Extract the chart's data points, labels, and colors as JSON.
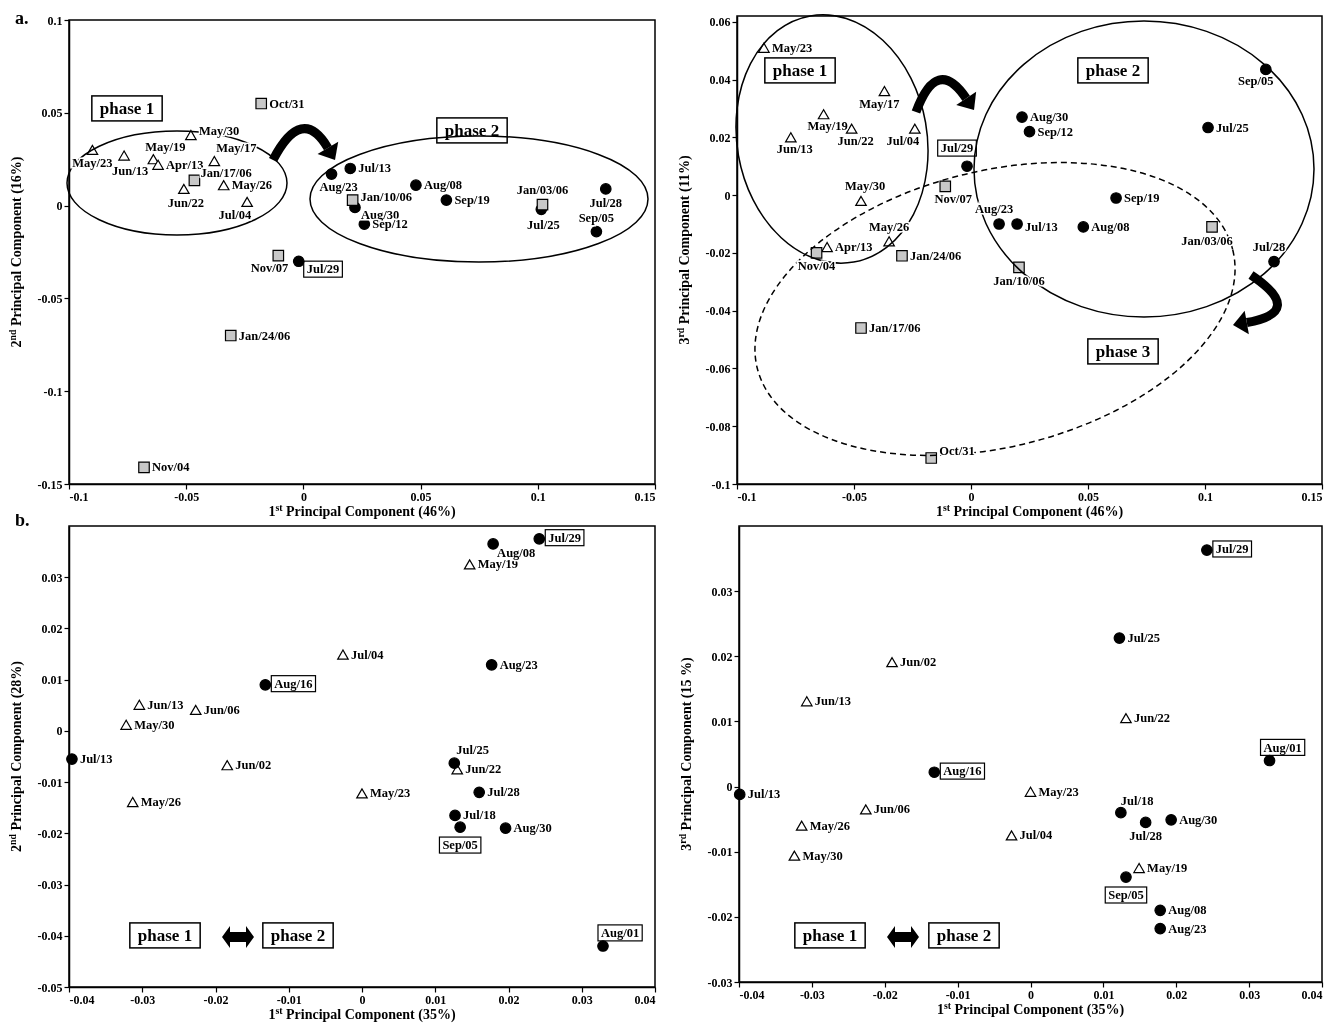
{
  "chart_data": [
    {
      "type": "scatter",
      "xlabel": "1$^{st}$ Principal Component (46%)",
      "ylabel": "2$^{nd}$ Principal Component (16%)",
      "xlim": [
        -0.1,
        0.15
      ],
      "ylim": [
        -0.15,
        0.1
      ],
      "xticks": [
        -0.1,
        -0.05,
        0,
        0.05,
        0.1,
        0.15
      ],
      "yticks": [
        -0.15,
        -0.1,
        -0.05,
        0,
        0.05,
        0.1
      ],
      "annotations": [
        "a.",
        "phase 1",
        "phase 2"
      ],
      "series": [
        {
          "color": "#ffffff",
          "marker": "triangle",
          "x": [
            -0.09,
            -0.0765,
            -0.064,
            -0.062,
            -0.048,
            -0.038,
            -0.051,
            -0.034,
            -0.024
          ],
          "values": [
            0.03,
            0.027,
            0.025,
            0.022,
            0.038,
            0.024,
            0.009,
            0.011,
            0.002
          ],
          "value_labels": [
            "May/23",
            "Jun/13",
            "May/19",
            "Apr/13",
            "May/30",
            "May/17",
            "Jun/22",
            "May/26",
            "Jul/04"
          ]
        },
        {
          "color": "#000000",
          "marker": "circle",
          "x": [
            0.02,
            0.012,
            0.022,
            0.026,
            0.048,
            0.061,
            0.1015,
            0.129,
            0.125,
            -0.002
          ],
          "values": [
            0.02,
            0.017,
            -0.001,
            -0.01,
            0.011,
            0.003,
            -0.002,
            0.009,
            -0.014,
            -0.03
          ],
          "value_labels": [
            "Jul/13",
            "Aug/23",
            "Aug/30",
            "Sep/12",
            "Aug/08",
            "Sep/19",
            "Jul/25",
            "Jul/28",
            "Sep/05",
            "Jul/29"
          ]
        },
        {
          "color": "#c8c8c8",
          "marker": "square",
          "x": [
            -0.018,
            -0.0465,
            -0.0107,
            -0.031,
            -0.068,
            0.021,
            0.102
          ],
          "values": [
            0.055,
            0.0136,
            -0.027,
            -0.07,
            -0.141,
            0.003,
            0.0005
          ],
          "value_labels": [
            "Oct/31",
            "Jan/17/06",
            "Nov/07",
            "Jan/24/06",
            "Nov/04",
            "Jan/10/06",
            "Jan/03/06"
          ]
        }
      ]
    },
    {
      "type": "scatter",
      "xlabel": "1$^{st}$ Principal Component (46%)",
      "ylabel": "3$^{rd}$ Principal Component (11%)",
      "xlim": [
        -0.1,
        0.15
      ],
      "ylim": [
        -0.1,
        0.062
      ],
      "xticks": [
        -0.1,
        -0.05,
        0,
        0.05,
        0.1,
        0.15
      ],
      "yticks": [
        -0.1,
        -0.08,
        -0.06,
        -0.04,
        -0.02,
        0,
        0.02,
        0.04,
        0.06
      ],
      "annotations": [
        "phase 1",
        "phase 2",
        "phase 3"
      ],
      "series": [
        {
          "color": "#ffffff",
          "marker": "triangle",
          "x": [
            -0.0885,
            -0.037,
            -0.063,
            -0.077,
            -0.051,
            -0.024,
            -0.047,
            -0.035,
            -0.0615
          ],
          "values": [
            0.051,
            0.036,
            0.028,
            0.02,
            0.023,
            0.023,
            -0.002,
            -0.016,
            -0.018
          ],
          "value_labels": [
            "May/23",
            "May/17",
            "May/19",
            "Jun/13",
            "Jun/22",
            "Jul/04",
            "May/30",
            "May/26",
            "Apr/13"
          ]
        },
        {
          "color": "#000000",
          "marker": "circle",
          "x": [
            -0.0017,
            0.0218,
            0.025,
            0.126,
            0.1013,
            0.062,
            0.012,
            0.0197,
            0.048,
            0.1295
          ],
          "values": [
            0.01,
            0.027,
            0.022,
            0.0435,
            0.0234,
            -0.001,
            -0.01,
            -0.01,
            -0.011,
            -0.023
          ],
          "value_labels": [
            "Jul/29",
            "Aug/30",
            "Sep/12",
            "Sep/05",
            "Jul/25",
            "Sep/19",
            "Aug/23",
            "Jul/13",
            "Aug/08",
            "Jul/28"
          ]
        },
        {
          "color": "#c8c8c8",
          "marker": "square",
          "x": [
            -0.066,
            -0.011,
            -0.0295,
            -0.047,
            -0.017,
            0.0205,
            0.103
          ],
          "values": [
            -0.02,
            0.003,
            -0.021,
            -0.046,
            -0.091,
            -0.025,
            -0.011
          ],
          "value_labels": [
            "Nov/04",
            "Nov/07",
            "Jan/24/06",
            "Jan/17/06",
            "Oct/31",
            "Jan/10/06",
            "Jan/03/06"
          ]
        }
      ]
    },
    {
      "type": "scatter",
      "xlabel": "1$^{st}$ Principal Component (35%)",
      "ylabel": "2$^{nd}$ Principal Component  (28%)",
      "xlim": [
        -0.04,
        0.04
      ],
      "ylim": [
        -0.05,
        0.04
      ],
      "xticks": [
        -0.04,
        -0.03,
        -0.02,
        -0.01,
        0,
        0.01,
        0.02,
        0.03,
        0.04
      ],
      "yticks": [
        -0.05,
        -0.04,
        -0.03,
        -0.02,
        -0.01,
        0,
        0.01,
        0.02,
        0.03
      ],
      "annotations": [
        "b.",
        "phase 1",
        "phase 2"
      ],
      "series": [
        {
          "color": "#ffffff",
          "marker": "triangle",
          "x": [
            0.0147,
            -0.0026,
            -0.0304,
            -0.0227,
            -0.0322,
            -0.0184,
            -0.0313,
            0.0,
            0.013
          ],
          "values": [
            0.0325,
            0.0149,
            0.0051,
            0.0041,
            0.0012,
            -0.0067,
            -0.0139,
            -0.0122,
            -0.0075
          ],
          "value_labels": [
            "May/19",
            "Jul/04",
            "Jun/13",
            "Jun/06",
            "May/30",
            "Jun/02",
            "May/26",
            "May/23",
            "Jun/22"
          ]
        },
        {
          "color": "#000000",
          "marker": "circle",
          "x": [
            0.0242,
            0.0179,
            0.0177,
            -0.0132,
            -0.0396,
            0.0126,
            0.016,
            0.0127,
            0.0134,
            0.0196,
            0.0329
          ],
          "values": [
            0.0375,
            0.0365,
            0.0129,
            0.009,
            -0.0055,
            -0.0063,
            -0.012,
            -0.0165,
            -0.0188,
            -0.019,
            -0.042
          ],
          "value_labels": [
            "Jul/29",
            "Aug/08",
            "Aug/23",
            "Aug/16",
            "Jul/13",
            "Jul/25",
            "Jul/28",
            "Jul/18",
            "Sep/05",
            "Aug/30",
            "Aug/01"
          ]
        }
      ]
    },
    {
      "type": "scatter",
      "xlabel": "1$^{st}$ Principal Component (35%)",
      "ylabel": "3$^{rd}$ Principal Component (15 %)",
      "xlim": [
        -0.04,
        0.04
      ],
      "ylim": [
        -0.03,
        0.04
      ],
      "xticks": [
        -0.04,
        -0.03,
        -0.02,
        -0.01,
        0,
        0.01,
        0.02,
        0.03,
        0.04
      ],
      "yticks": [
        -0.03,
        -0.02,
        -0.01,
        0,
        0.01,
        0.02,
        0.03
      ],
      "annotations": [
        "phase 1",
        "phase 2"
      ],
      "series": [
        {
          "color": "#ffffff",
          "marker": "triangle",
          "x": [
            -0.019,
            -0.0307,
            0.0131,
            0.0,
            -0.0226,
            -0.0314,
            -0.0026,
            -0.0324,
            0.0149
          ],
          "values": [
            0.0191,
            0.0131,
            0.0105,
            -0.0008,
            -0.0035,
            -0.006,
            -0.0075,
            -0.0106,
            -0.0125
          ],
          "value_labels": [
            "Jun/02",
            "Jun/13",
            "Jun/22",
            "May/23",
            "Jun/06",
            "May/26",
            "Jul/04",
            "May/30",
            "May/19"
          ]
        },
        {
          "color": "#000000",
          "marker": "circle",
          "x": [
            0.0242,
            0.0122,
            0.0328,
            -0.0132,
            -0.0399,
            0.0124,
            0.0158,
            0.0193,
            0.0131,
            0.0178,
            0.0178
          ],
          "values": [
            0.0363,
            0.0228,
            0.004,
            0.0022,
            -0.0012,
            -0.004,
            -0.0055,
            -0.0051,
            -0.0139,
            -0.019,
            -0.0218
          ],
          "value_labels": [
            "Jul/29",
            "Jul/25",
            "Aug/01",
            "Aug/16",
            "Jul/13",
            "Jul/18",
            "Jul/28",
            "Aug/30",
            "Sep/05",
            "Aug/08",
            "Aug/23"
          ]
        }
      ]
    }
  ]
}
